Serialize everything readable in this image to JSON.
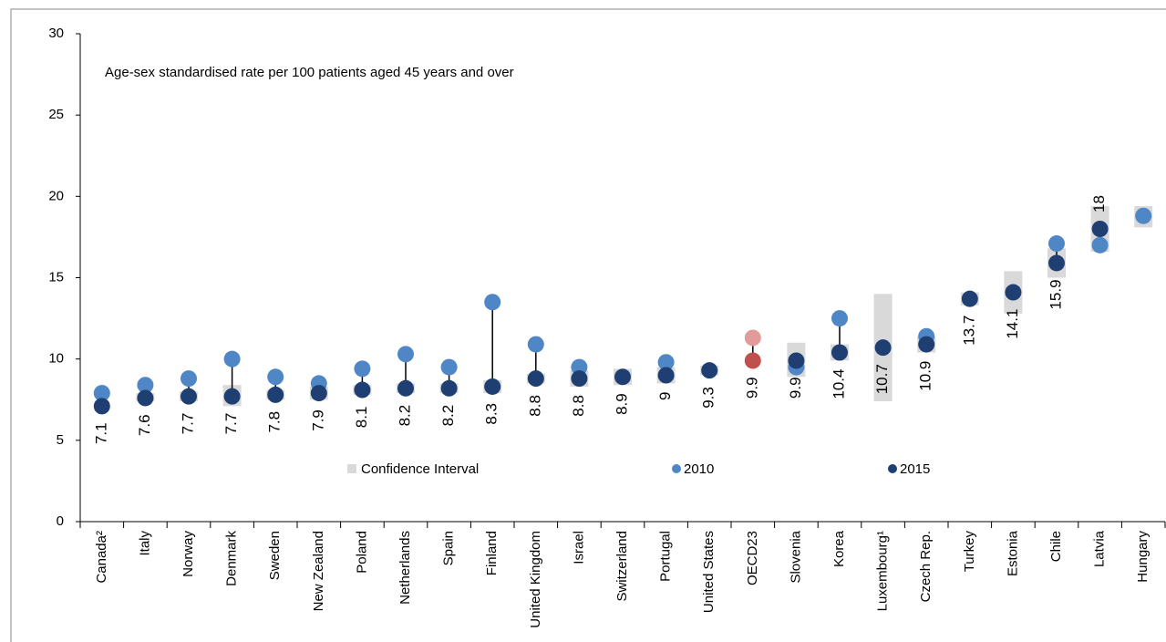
{
  "chart_data": {
    "type": "dot",
    "annotation": "Age-sex standardised rate  per 100 patients aged 45 years and over",
    "categories": [
      "Canada²",
      "Italy",
      "Norway",
      "Denmark",
      "Sweden",
      "New Zealand",
      "Poland",
      "Netherlands",
      "Spain",
      "Finland",
      "United Kingdom",
      "Israel",
      "Switzerland",
      "Portugal",
      "United States",
      "OECD23",
      "Slovenia",
      "Korea",
      "Luxembourg¹",
      "Czech Rep.",
      "Turkey",
      "Estonia",
      "Chile",
      "Latvia",
      "Hungary"
    ],
    "highlight": 15,
    "series": [
      {
        "name": "Confidence Interval",
        "color": "#d9d9d9",
        "low": [
          null,
          7.4,
          7.4,
          7.1,
          7.5,
          7.5,
          7.8,
          7.9,
          7.9,
          7.9,
          8.5,
          8.3,
          8.4,
          8.5,
          9.0,
          null,
          8.9,
          9.9,
          7.4,
          10.4,
          13.3,
          12.8,
          15.0,
          16.6,
          18.1
        ],
        "high": [
          null,
          7.9,
          8.0,
          8.4,
          8.1,
          8.3,
          8.4,
          8.5,
          8.5,
          8.7,
          9.1,
          9.3,
          9.4,
          9.5,
          9.6,
          null,
          11.0,
          10.9,
          14.0,
          11.4,
          14.1,
          15.4,
          16.8,
          19.4,
          19.4
        ]
      },
      {
        "name": "2010",
        "color": "#4f86c6",
        "highlight_color": "#e39a9a",
        "values": [
          7.9,
          8.4,
          8.8,
          10.0,
          8.9,
          8.5,
          9.4,
          10.3,
          9.5,
          13.5,
          10.9,
          9.5,
          null,
          9.8,
          null,
          11.3,
          9.5,
          12.5,
          null,
          11.4,
          null,
          null,
          17.1,
          17.0,
          18.8
        ]
      },
      {
        "name": "2015",
        "color": "#1f3f73",
        "highlight_color": "#c0504d",
        "values": [
          7.1,
          7.6,
          7.7,
          7.7,
          7.8,
          7.9,
          8.1,
          8.2,
          8.2,
          8.3,
          8.8,
          8.8,
          8.9,
          9.0,
          9.3,
          9.9,
          9.9,
          10.4,
          10.7,
          10.9,
          13.7,
          14.1,
          15.9,
          18.0,
          null
        ]
      }
    ],
    "ylim": [
      0,
      30
    ],
    "yticks": [
      0,
      5,
      10,
      15,
      20,
      25,
      30
    ]
  }
}
